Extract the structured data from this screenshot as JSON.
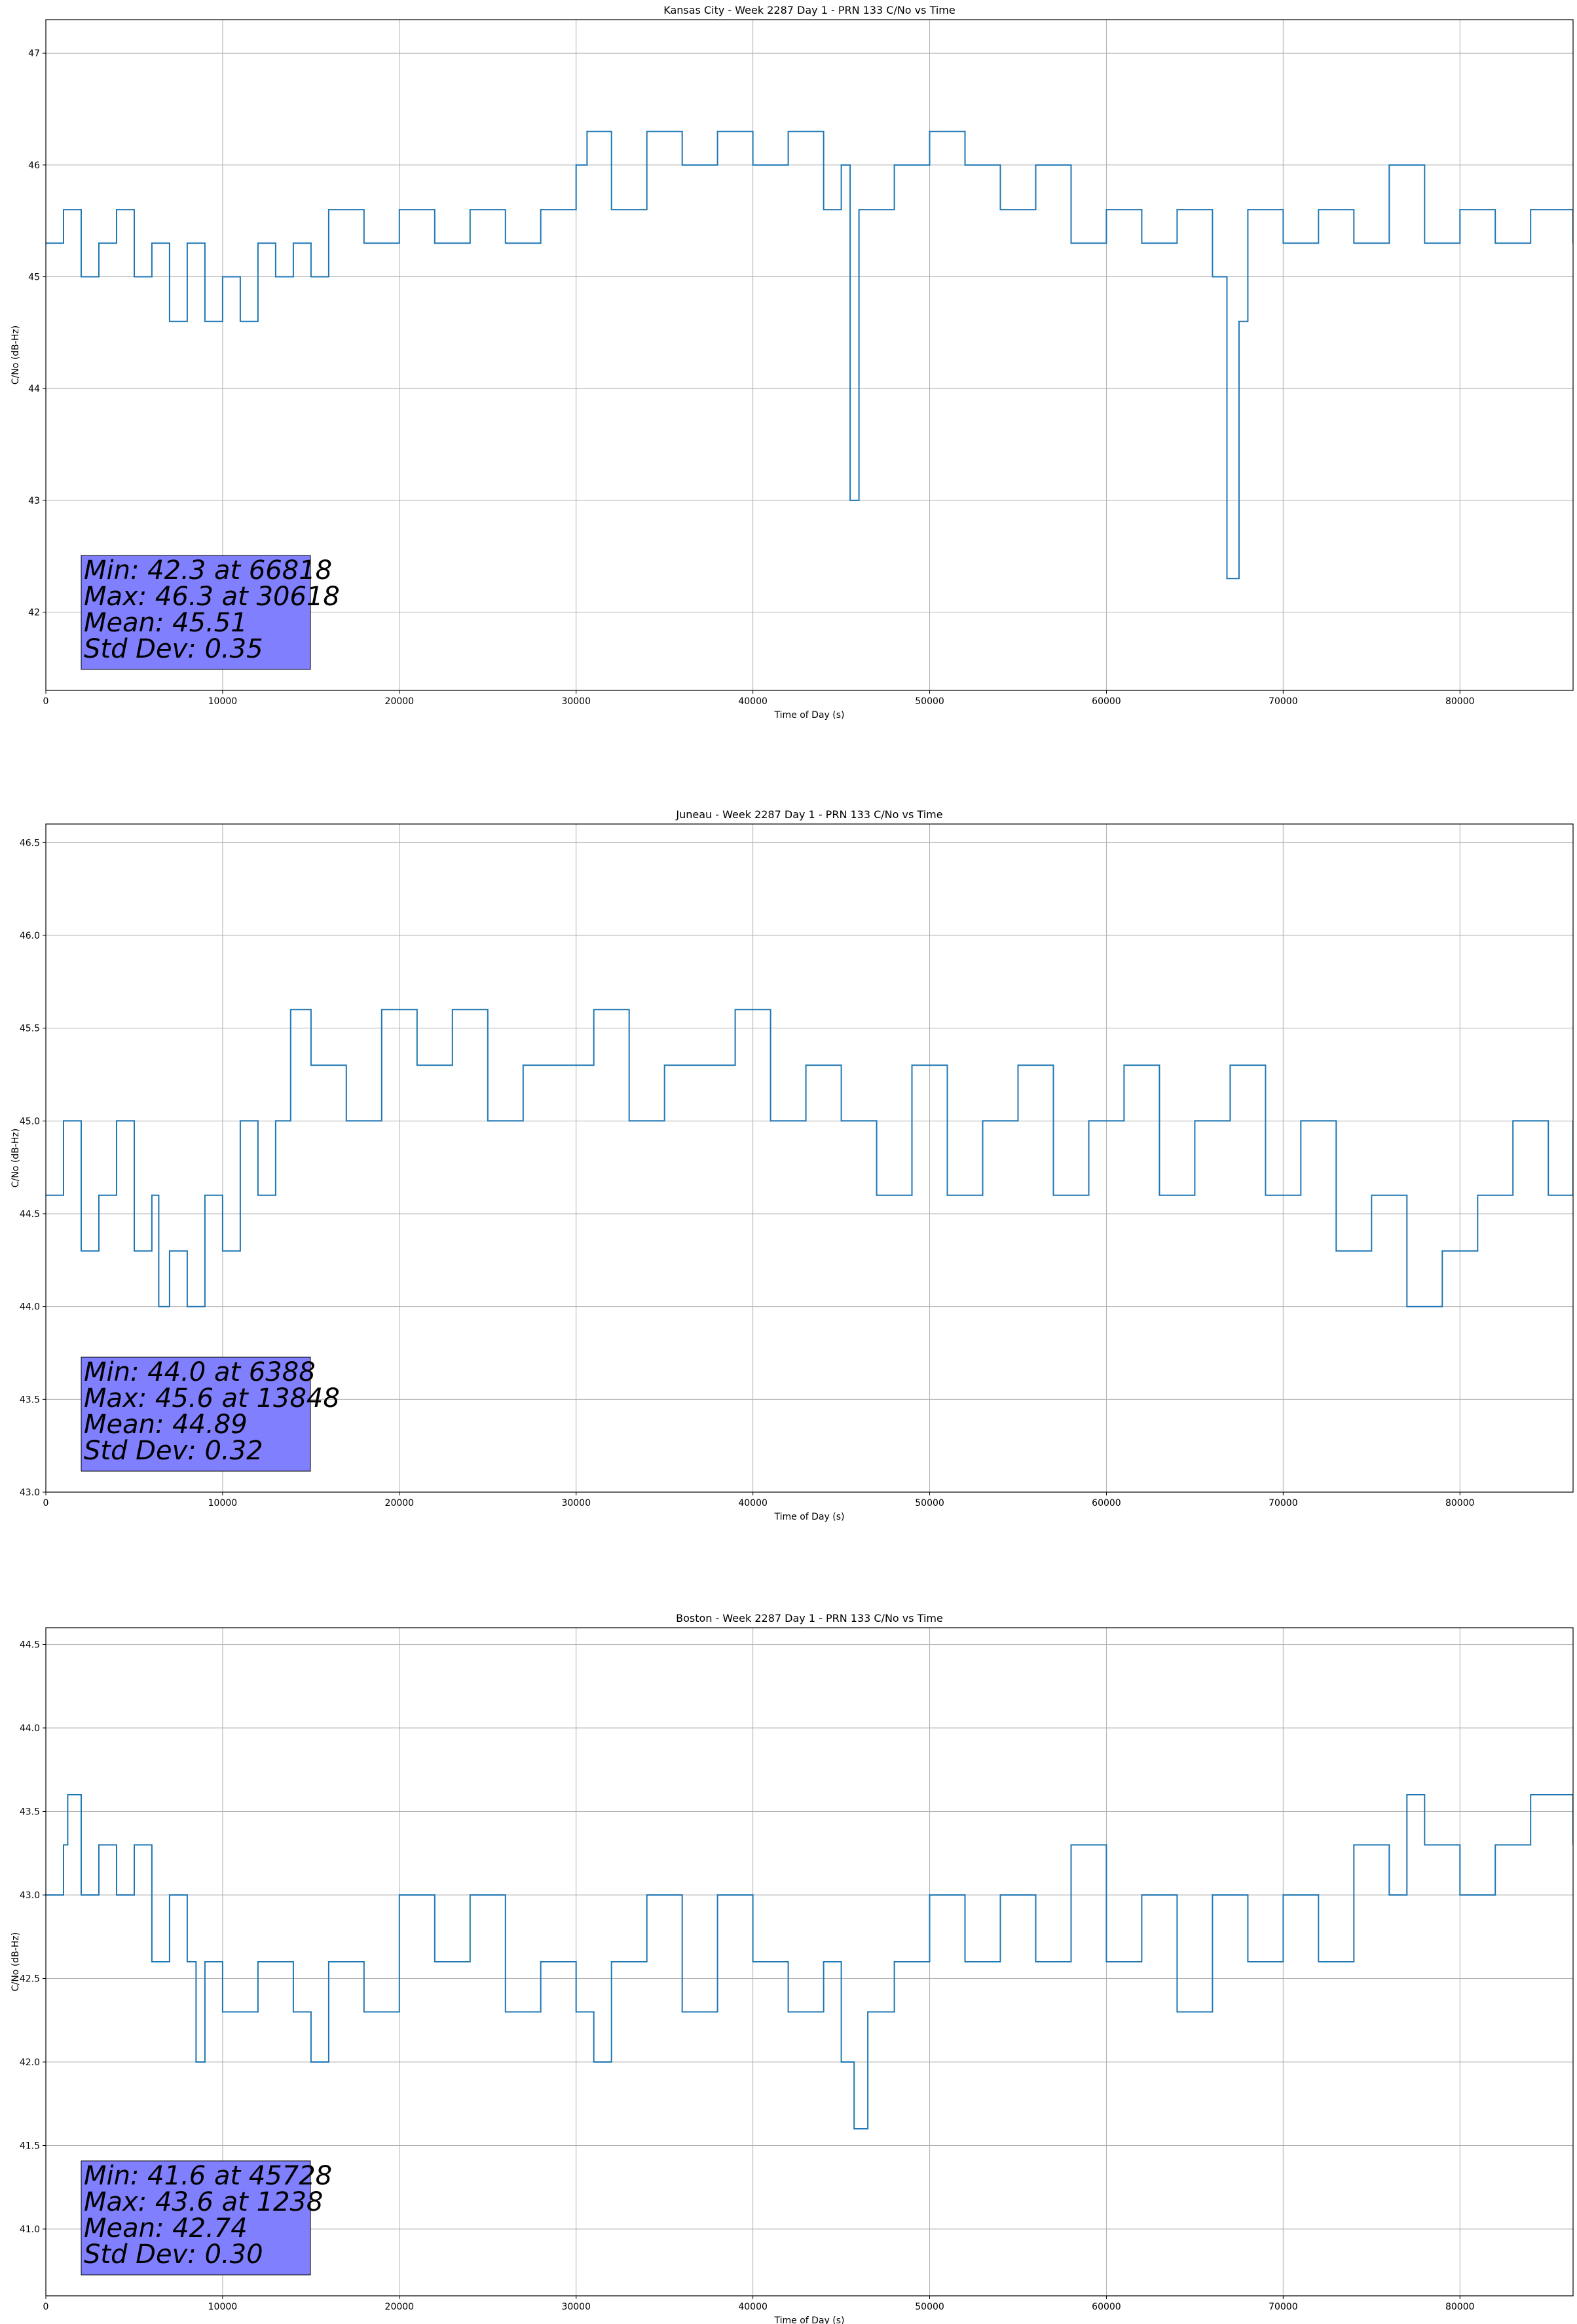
{
  "chart_data": [
    {
      "type": "line",
      "title": "Kansas City - Week 2287 Day 1 - PRN 133 C/No vs Time",
      "xlabel": "Time of Day (s)",
      "ylabel": "C/No (dB-Hz)",
      "xlim": [
        0,
        86400
      ],
      "ylim": [
        41.3,
        47.3
      ],
      "xticks": [
        0,
        10000,
        20000,
        30000,
        40000,
        50000,
        60000,
        70000,
        80000
      ],
      "yticks": [
        42,
        43,
        44,
        45,
        46,
        47
      ],
      "grid": true,
      "color": "#1f77b4",
      "series": [
        {
          "x": [
            0,
            1000,
            2000,
            3000,
            4000,
            5000,
            6000,
            7000,
            8000,
            9000,
            10000,
            11000,
            12000,
            13000,
            14000,
            15000,
            16000,
            18000,
            20000,
            22000,
            24000,
            26000,
            28000,
            29000,
            30000,
            30618,
            32000,
            34000,
            36000,
            38000,
            40000,
            42000,
            44000,
            45000,
            45500,
            46000,
            48000,
            50000,
            52000,
            54000,
            56000,
            58000,
            60000,
            62000,
            64000,
            66000,
            66818,
            67500,
            68000,
            70000,
            72000,
            74000,
            76000,
            78000,
            80000,
            82000,
            84000,
            86400
          ],
          "y": [
            45.3,
            45.6,
            45.0,
            45.3,
            45.6,
            45.0,
            45.3,
            44.6,
            45.3,
            44.6,
            45.0,
            44.6,
            45.3,
            45.0,
            45.3,
            45.0,
            45.6,
            45.3,
            45.6,
            45.3,
            45.6,
            45.3,
            45.6,
            45.6,
            46.0,
            46.3,
            45.6,
            46.3,
            46.0,
            46.3,
            46.0,
            46.3,
            45.6,
            46.0,
            43.0,
            45.6,
            46.0,
            46.3,
            46.0,
            45.6,
            46.0,
            45.3,
            45.6,
            45.3,
            45.6,
            45.0,
            42.3,
            44.6,
            45.6,
            45.3,
            45.6,
            45.3,
            46.0,
            45.3,
            45.6,
            45.3,
            45.6,
            45.3
          ]
        }
      ],
      "stats": [
        "Min: 42.3 at 66818",
        "Max: 46.3 at 30618",
        "Mean: 45.51",
        "Std Dev: 0.35"
      ],
      "stats_box_color": "#8080ff"
    },
    {
      "type": "line",
      "title": "Juneau - Week 2287 Day 1 - PRN 133 C/No vs Time",
      "xlabel": "Time of Day (s)",
      "ylabel": "C/No (dB-Hz)",
      "xlim": [
        0,
        86400
      ],
      "ylim": [
        43.0,
        46.6
      ],
      "xticks": [
        0,
        10000,
        20000,
        30000,
        40000,
        50000,
        60000,
        70000,
        80000
      ],
      "yticks": [
        43.0,
        43.5,
        44.0,
        44.5,
        45.0,
        45.5,
        46.0,
        46.5
      ],
      "grid": true,
      "color": "#1f77b4",
      "series": [
        {
          "x": [
            0,
            1000,
            2000,
            3000,
            4000,
            5000,
            6000,
            6388,
            7000,
            8000,
            9000,
            10000,
            11000,
            12000,
            13000,
            13848,
            15000,
            17000,
            19000,
            21000,
            23000,
            25000,
            27000,
            29000,
            31000,
            33000,
            35000,
            37000,
            39000,
            41000,
            43000,
            45000,
            47000,
            49000,
            51000,
            53000,
            55000,
            57000,
            59000,
            61000,
            63000,
            65000,
            67000,
            69000,
            71000,
            73000,
            75000,
            77000,
            79000,
            81000,
            83000,
            85000,
            86400
          ],
          "y": [
            44.6,
            45.0,
            44.3,
            44.6,
            45.0,
            44.3,
            44.6,
            44.0,
            44.3,
            44.0,
            44.6,
            44.3,
            45.0,
            44.6,
            45.0,
            45.6,
            45.3,
            45.0,
            45.6,
            45.3,
            45.6,
            45.0,
            45.3,
            45.3,
            45.6,
            45.0,
            45.3,
            45.3,
            45.6,
            45.0,
            45.3,
            45.0,
            44.6,
            45.3,
            44.6,
            45.0,
            45.3,
            44.6,
            45.0,
            45.3,
            44.6,
            45.0,
            45.3,
            44.6,
            45.0,
            44.3,
            44.6,
            44.0,
            44.3,
            44.6,
            45.0,
            44.6,
            45.0
          ]
        }
      ],
      "stats": [
        "Min: 44.0 at 6388",
        "Max: 45.6 at 13848",
        "Mean: 44.89",
        "Std Dev: 0.32"
      ],
      "stats_box_color": "#8080ff"
    },
    {
      "type": "line",
      "title": "Boston - Week 2287 Day 1 - PRN 133 C/No vs Time",
      "xlabel": "Time of Day (s)",
      "ylabel": "C/No (dB-Hz)",
      "xlim": [
        0,
        86400
      ],
      "ylim": [
        40.6,
        44.6
      ],
      "xticks": [
        0,
        10000,
        20000,
        30000,
        40000,
        50000,
        60000,
        70000,
        80000
      ],
      "yticks": [
        41.0,
        41.5,
        42.0,
        42.5,
        43.0,
        43.5,
        44.0,
        44.5
      ],
      "grid": true,
      "color": "#1f77b4",
      "series": [
        {
          "x": [
            0,
            1000,
            1238,
            2000,
            3000,
            4000,
            5000,
            6000,
            7000,
            8000,
            8500,
            9000,
            10000,
            12000,
            14000,
            15000,
            16000,
            18000,
            20000,
            22000,
            24000,
            26000,
            28000,
            30000,
            31000,
            32000,
            34000,
            36000,
            38000,
            40000,
            42000,
            44000,
            45000,
            45728,
            46500,
            48000,
            50000,
            52000,
            54000,
            56000,
            58000,
            60000,
            62000,
            64000,
            66000,
            68000,
            70000,
            72000,
            74000,
            76000,
            77000,
            78000,
            80000,
            82000,
            84000,
            86400
          ],
          "y": [
            43.0,
            43.3,
            43.6,
            43.0,
            43.3,
            43.0,
            43.3,
            42.6,
            43.0,
            42.6,
            42.0,
            42.6,
            42.3,
            42.6,
            42.3,
            42.0,
            42.6,
            42.3,
            43.0,
            42.6,
            43.0,
            42.3,
            42.6,
            42.3,
            42.0,
            42.6,
            43.0,
            42.3,
            43.0,
            42.6,
            42.3,
            42.6,
            42.0,
            41.6,
            42.3,
            42.6,
            43.0,
            42.6,
            43.0,
            42.6,
            43.3,
            42.6,
            43.0,
            42.3,
            43.0,
            42.6,
            43.0,
            42.6,
            43.3,
            43.0,
            43.6,
            43.3,
            43.0,
            43.3,
            43.6,
            43.3
          ]
        }
      ],
      "stats": [
        "Min: 41.6 at 45728",
        "Max: 43.6 at 1238",
        "Mean: 42.74",
        "Std Dev: 0.30"
      ],
      "stats_box_color": "#8080ff"
    }
  ]
}
